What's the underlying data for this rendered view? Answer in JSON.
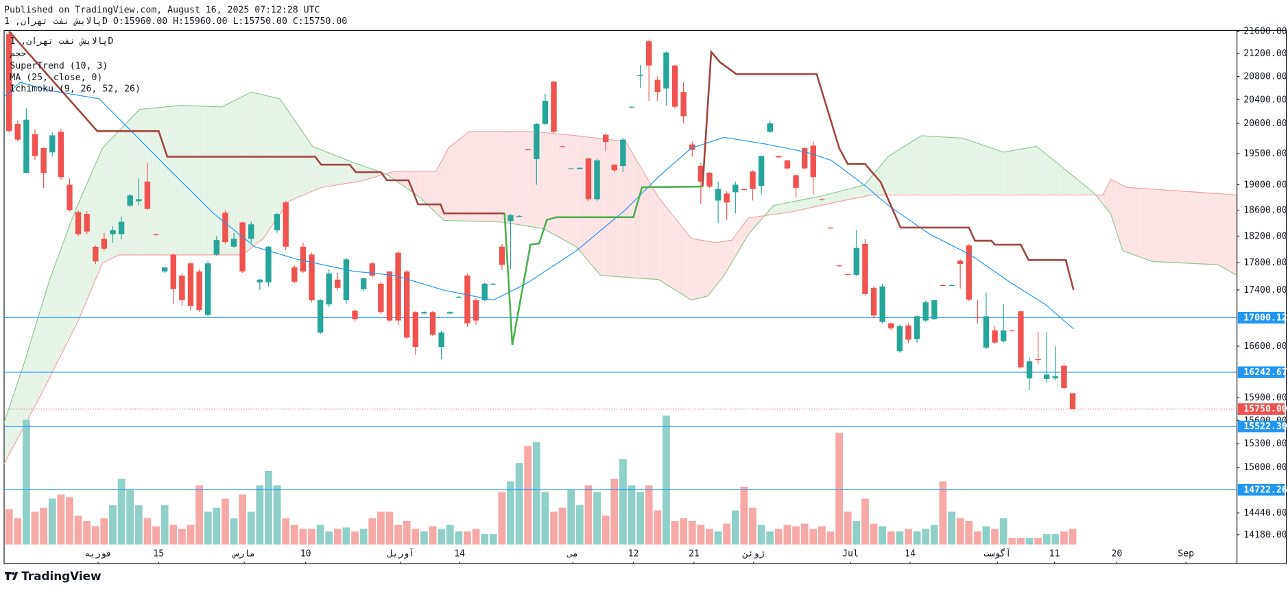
{
  "header": {
    "published": "Published on TradingView.com, August 16, 2025 07:12:28 UTC",
    "ohlc_line": "پالایش نفت تهران, 1D O:15960.00 H:15960.00 L:15750.00 C:15750.00"
  },
  "branding": "TradingView",
  "chart_data": {
    "type": "candlestick",
    "symbol_line": "پالایش نفت تهران, 1D",
    "volume_label": "حجم",
    "log": true,
    "xlim": [
      -0.57,
      142.0
    ],
    "ylim": [
      14062,
      21615
    ],
    "vlim": [
      0,
      100
    ],
    "up_color": "#26a69a",
    "down_color": "#ef5350",
    "volume_up_color": "#8fd1c9",
    "volume_down_color": "#f7a9a7",
    "xticks": [
      {
        "value": 10.3,
        "label": "فوریه"
      },
      {
        "value": 17.3,
        "label": "15"
      },
      {
        "value": 27.2,
        "label": "مارس"
      },
      {
        "value": 34.3,
        "label": "10"
      },
      {
        "value": 45.3,
        "label": "آوریل"
      },
      {
        "value": 52.1,
        "label": "14"
      },
      {
        "value": 65.2,
        "label": "می"
      },
      {
        "value": 72.2,
        "label": "12"
      },
      {
        "value": 79.2,
        "label": "21"
      },
      {
        "value": 86.1,
        "label": "ژوئن"
      },
      {
        "value": 97.3,
        "label": "Jul"
      },
      {
        "value": 104.2,
        "label": "14"
      },
      {
        "value": 114.3,
        "label": "آگوست"
      },
      {
        "value": 120.9,
        "label": "11"
      },
      {
        "value": 128.1,
        "label": "20"
      },
      {
        "value": 136.1,
        "label": "Sep"
      }
    ],
    "yticks": [
      {
        "value": 21600,
        "label": "21600.00"
      },
      {
        "value": 21200,
        "label": "21200.00"
      },
      {
        "value": 20800,
        "label": "20800.00"
      },
      {
        "value": 20400,
        "label": "20400.00"
      },
      {
        "value": 20000,
        "label": "20000.00"
      },
      {
        "value": 19500,
        "label": "19500.00"
      },
      {
        "value": 19000,
        "label": "19000.00"
      },
      {
        "value": 18600,
        "label": "18600.00"
      },
      {
        "value": 18200,
        "label": "18200.00"
      },
      {
        "value": 17800,
        "label": "17800.00"
      },
      {
        "value": 17400,
        "label": "17400.00"
      },
      {
        "value": 16600,
        "label": "16600.00"
      },
      {
        "value": 15900,
        "label": "15900.00"
      },
      {
        "value": 15600,
        "label": "15600.00"
      },
      {
        "value": 15300,
        "label": "15300.00"
      },
      {
        "value": 15000,
        "label": "15000.00"
      },
      {
        "value": 14440,
        "label": "14440.00"
      },
      {
        "value": 14180,
        "label": "14180.00"
      }
    ],
    "hlines": [
      {
        "value": 17000.12,
        "color": "#2196f3"
      },
      {
        "value": 16242.67,
        "color": "#2196f3"
      },
      {
        "value": 15750,
        "label": "15750.00",
        "color": "#ef5350",
        "dotted": true
      },
      {
        "value": 15522.3,
        "label": "15522.30",
        "color": "#2196f3"
      },
      {
        "value": 14722.26,
        "color": "#2196f3"
      }
    ],
    "open": [
      21550,
      19990,
      19190,
      19820,
      19590,
      19520,
      19860,
      19000,
      18570,
      18540,
      18040,
      18160,
      18230,
      18230,
      18670,
      18740,
      19050,
      18230,
      17670,
      17920,
      17610,
      17790,
      17670,
      17040,
      17920,
      18560,
      18040,
      18410,
      18160,
      17510,
      17510,
      18290,
      18720,
      17730,
      18040,
      17920,
      16790,
      17190,
      17550,
      17250,
      17100,
      17410,
      17790,
      17490,
      17670,
      17950,
      17670,
      17080,
      17060,
      17080,
      16590,
      17060,
      17290,
      17610,
      17250,
      17250,
      17480,
      18040,
      18430,
      18500,
      19570,
      19410,
      19990,
      20710,
      19620,
      19260,
      19250,
      19420,
      18770,
      19810,
      19320,
      19300,
      20270,
      20810,
      21420,
      20740,
      20590,
      20990,
      20530,
      19650,
      19300,
      19190,
      18750,
      18860,
      18880,
      18930,
      19210,
      18980,
      19860,
      19460,
      19390,
      19150,
      19590,
      19630,
      18770,
      18330,
      17760,
      17630,
      17620,
      18080,
      17430,
      16940,
      16920,
      16530,
      16890,
      16700,
      16960,
      16980,
      17470,
      17470,
      17830,
      18060,
      17010,
      16580,
      16820,
      16670,
      16820,
      17090,
      16160,
      16420,
      16150,
      16160,
      16330,
      15960
    ],
    "high": [
      21600,
      20050,
      20250,
      19900,
      19600,
      19850,
      19900,
      19100,
      18600,
      18580,
      18060,
      18250,
      18350,
      18500,
      18850,
      19100,
      19350,
      18240,
      17730,
      17940,
      17650,
      17800,
      17700,
      17830,
      18200,
      18590,
      18250,
      18420,
      18420,
      17560,
      18050,
      18560,
      18740,
      17760,
      18100,
      17950,
      17270,
      17700,
      17650,
      17870,
      17120,
      17580,
      17810,
      17520,
      17680,
      17970,
      17690,
      17090,
      17090,
      17100,
      16810,
      17090,
      17310,
      17640,
      17280,
      17500,
      17500,
      18080,
      18540,
      18520,
      19580,
      20000,
      20500,
      20720,
      19630,
      19270,
      19280,
      19430,
      19420,
      19830,
      19330,
      19760,
      20290,
      21000,
      21450,
      20800,
      21240,
      21000,
      20700,
      19700,
      19350,
      19200,
      19050,
      18900,
      19050,
      18940,
      19230,
      19470,
      20050,
      19470,
      19400,
      19160,
      19600,
      19700,
      18780,
      18340,
      17770,
      17640,
      18290,
      18160,
      17450,
      17490,
      16930,
      16900,
      16920,
      17030,
      17240,
      17260,
      17480,
      17480,
      17850,
      18080,
      17250,
      17360,
      16880,
      17200,
      16830,
      17100,
      16440,
      16800,
      16800,
      16600,
      16350,
      15960
    ],
    "low": [
      19850,
      19700,
      19180,
      19400,
      18950,
      19450,
      19080,
      18580,
      18200,
      18230,
      17780,
      17980,
      18100,
      18150,
      18650,
      18680,
      18600,
      18200,
      17650,
      17190,
      17170,
      17100,
      17080,
      17020,
      17900,
      18080,
      18020,
      17650,
      18100,
      17400,
      17450,
      18250,
      17990,
      17500,
      17650,
      17220,
      16770,
      17150,
      17400,
      17200,
      16950,
      17380,
      17580,
      17050,
      16940,
      16900,
      16700,
      16480,
      17050,
      16740,
      16420,
      17050,
      17280,
      16870,
      16900,
      17240,
      17470,
      17700,
      17700,
      18490,
      19550,
      19000,
      19970,
      19840,
      19600,
      19250,
      19240,
      18740,
      18740,
      19540,
      19200,
      19200,
      20260,
      20600,
      20380,
      20380,
      20300,
      20250,
      20000,
      19450,
      18700,
      18950,
      18400,
      18450,
      18550,
      18910,
      18750,
      18850,
      19840,
      19430,
      19240,
      18800,
      19250,
      18850,
      18750,
      18310,
      17740,
      17610,
      17600,
      17320,
      17000,
      16920,
      16820,
      16510,
      16640,
      16650,
      16940,
      16970,
      17460,
      17460,
      17420,
      17240,
      16920,
      16560,
      16630,
      16650,
      16810,
      16290,
      16000,
      16350,
      16100,
      16140,
      16010,
      15750
    ],
    "close": [
      19870,
      19730,
      20060,
      19460,
      19190,
      19800,
      19120,
      18600,
      18230,
      18270,
      17820,
      18010,
      18290,
      18420,
      18830,
      18770,
      18620,
      18220,
      17730,
      17410,
      17250,
      17170,
      17110,
      17790,
      18140,
      18110,
      18160,
      17670,
      18380,
      17550,
      18040,
      18540,
      18040,
      17520,
      17670,
      17250,
      17250,
      17640,
      17430,
      17850,
      16980,
      17570,
      17610,
      17080,
      16960,
      16960,
      16720,
      16590,
      17080,
      16760,
      16790,
      17080,
      17300,
      16920,
      16960,
      17490,
      17490,
      17770,
      18520,
      18510,
      19560,
      19990,
      20380,
      19860,
      19610,
      19260,
      19270,
      18770,
      19390,
      19690,
      19230,
      19730,
      20280,
      20830,
      20990,
      20530,
      21220,
      20280,
      20120,
      19560,
      19050,
      18970,
      18930,
      18720,
      19000,
      18920,
      18930,
      19460,
      20000,
      19440,
      19260,
      18950,
      19260,
      19120,
      18760,
      18320,
      17750,
      17620,
      18020,
      17340,
      17030,
      17450,
      16850,
      16880,
      16690,
      17020,
      17220,
      17250,
      17460,
      17470,
      17780,
      17260,
      17000,
      17020,
      16650,
      16820,
      16810,
      16310,
      16390,
      16410,
      16210,
      16190,
      16030,
      15750
    ],
    "volume": [
      27,
      20,
      95,
      25,
      28,
      35,
      38,
      36,
      22,
      18,
      14,
      20,
      30,
      50,
      42,
      30,
      20,
      14,
      30,
      15,
      12,
      15,
      45,
      25,
      28,
      35,
      20,
      38,
      25,
      45,
      56,
      45,
      20,
      15,
      12,
      12,
      15,
      10,
      12,
      13,
      10,
      12,
      20,
      25,
      25,
      15,
      18,
      12,
      10,
      14,
      12,
      15,
      10,
      10,
      12,
      8,
      8,
      40,
      48,
      62,
      75,
      78,
      40,
      25,
      28,
      42,
      30,
      45,
      40,
      22,
      50,
      65,
      45,
      40,
      45,
      26,
      98,
      18,
      20,
      18,
      15,
      12,
      10,
      16,
      26,
      44,
      28,
      15,
      10,
      12,
      15,
      14,
      16,
      12,
      14,
      10,
      85,
      25,
      18,
      35,
      16,
      14,
      10,
      10,
      12,
      10,
      12,
      15,
      48,
      25,
      20,
      18,
      10,
      14,
      12,
      20,
      5,
      5,
      5,
      5,
      8,
      8,
      10,
      12
    ],
    "supertrend": {
      "name": "SuperTrend (10, 3)",
      "segments": [
        {
          "color": "#a0463f",
          "x": [
            0,
            10.2,
            17.3,
            18.3,
            35.4,
            36.1,
            39.4,
            40.1,
            43.0,
            43.7,
            46.2,
            47.3,
            49.9,
            50.3,
            57.3
          ],
          "values": [
            21600,
            19870,
            19870,
            19450,
            19450,
            19320,
            19320,
            19200,
            19200,
            19070,
            19070,
            18690,
            18690,
            18550,
            18550
          ]
        },
        {
          "color": "#4caf50",
          "x": [
            57.3,
            58.2,
            60.3,
            61.3,
            62.2,
            63.3,
            72.2,
            73.2,
            80.2
          ],
          "values": [
            18550,
            16620,
            18070,
            18090,
            18450,
            18490,
            18490,
            18960,
            18970
          ]
        },
        {
          "color": "#a0463f",
          "x": [
            80.2,
            81.2,
            82.2,
            84.1,
            93.4,
            96.0,
            97.0,
            99.0,
            100.8,
            103.1,
            111.0,
            111.7,
            113.6,
            114.0,
            117.0,
            117.9,
            122.2,
            123.1
          ],
          "values": [
            18970,
            21230,
            21050,
            20840,
            20840,
            19590,
            19330,
            19330,
            19040,
            18330,
            18330,
            18130,
            18130,
            18070,
            18070,
            17840,
            17840,
            17400
          ]
        }
      ]
    },
    "ma": {
      "name": "MA (25, close, 0)",
      "color": "#2196f3",
      "x": [
        -0.6,
        1.3,
        4.7,
        10.4,
        14.2,
        18.9,
        23.7,
        28.4,
        33.2,
        39.9,
        44.6,
        50.3,
        56.0,
        59.8,
        65.6,
        71.3,
        75.1,
        78.9,
        82.7,
        87.4,
        92.2,
        95.1,
        98.9,
        101.7,
        106.5,
        111.2,
        116.0,
        119.8,
        123.1
      ],
      "values": [
        20444,
        20699,
        20557,
        20416,
        19862,
        19191,
        18543,
        18040,
        17855,
        17672,
        17612,
        17395,
        17252,
        17491,
        17978,
        18607,
        19125,
        19591,
        19766,
        19658,
        19524,
        19390,
        18995,
        18671,
        18227,
        17916,
        17491,
        17193,
        16842
      ]
    },
    "ichimoku": {
      "name": "Ichimoku (9, 26, 52, 26)",
      "up_color": "rgba(76,175,80,0.12)",
      "down_color": "rgba(242,54,69,0.12)",
      "span_a": {
        "color": "#8bc98e",
        "x": [
          -0.6,
          1.8,
          4.7,
          7.5,
          10.8,
          15.1,
          19.9,
          24.6,
          28.0,
          31.3,
          35.1,
          39.9,
          43.7,
          47.5,
          50.3,
          57.0,
          61.8,
          65.6,
          68.4,
          75.1,
          78.9,
          80.8,
          82.7,
          85.5,
          88.4,
          94.1,
          98.9,
          101.7,
          105.5,
          110.3,
          115.0,
          118.8,
          122.6,
          125.5,
          127.4,
          128.8,
          132.2,
          136.0,
          139.8,
          142.0
        ],
        "values": [
          15563,
          16385,
          17551,
          18543,
          19591,
          20234,
          20304,
          20276,
          20529,
          20416,
          19618,
          19351,
          19165,
          18800,
          18441,
          18416,
          18315,
          18040,
          17612,
          17551,
          17252,
          17311,
          17612,
          18227,
          18671,
          18826,
          18995,
          19457,
          19794,
          19753,
          19524,
          19618,
          19191,
          18864,
          18543,
          17978,
          17818,
          17794,
          17770,
          17612
        ]
      },
      "span_b": {
        "color": "#f3a3a3",
        "x": [
          -0.6,
          3.7,
          8.0,
          10.8,
          12.7,
          27.0,
          29.4,
          32.3,
          36.1,
          40.8,
          44.6,
          49.4,
          50.8,
          53.2,
          60.8,
          65.6,
          71.3,
          75.1,
          78.9,
          81.7,
          83.6,
          85.5,
          90.3,
          96.0,
          99.8,
          126.5,
          127.4,
          129.3,
          142.0
        ],
        "values": [
          15040,
          15941,
          16958,
          17794,
          17916,
          17916,
          18164,
          18735,
          18956,
          19060,
          19217,
          19217,
          19591,
          19862,
          19862,
          19794,
          19699,
          18800,
          18164,
          18102,
          18139,
          18479,
          18568,
          18735,
          18838,
          18838,
          19086,
          18956,
          18838
        ]
      }
    }
  }
}
